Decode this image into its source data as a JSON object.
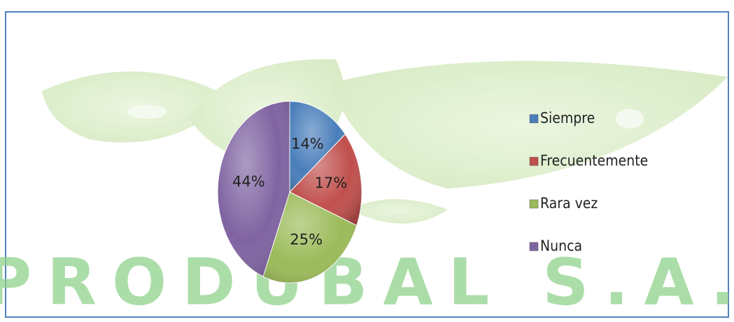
{
  "chart_data": {
    "type": "pie",
    "categories": [
      "Siempre",
      "Frecuentemente",
      "Rara vez",
      "Nunca"
    ],
    "values": [
      14,
      17,
      25,
      44
    ],
    "value_labels": [
      "14%",
      "17%",
      "25%",
      "44%"
    ],
    "colors": [
      "#4a7ebb",
      "#c0504d",
      "#9bbb59",
      "#8064a2"
    ],
    "legend": "right",
    "watermark": "PRODUBAL S.A."
  }
}
